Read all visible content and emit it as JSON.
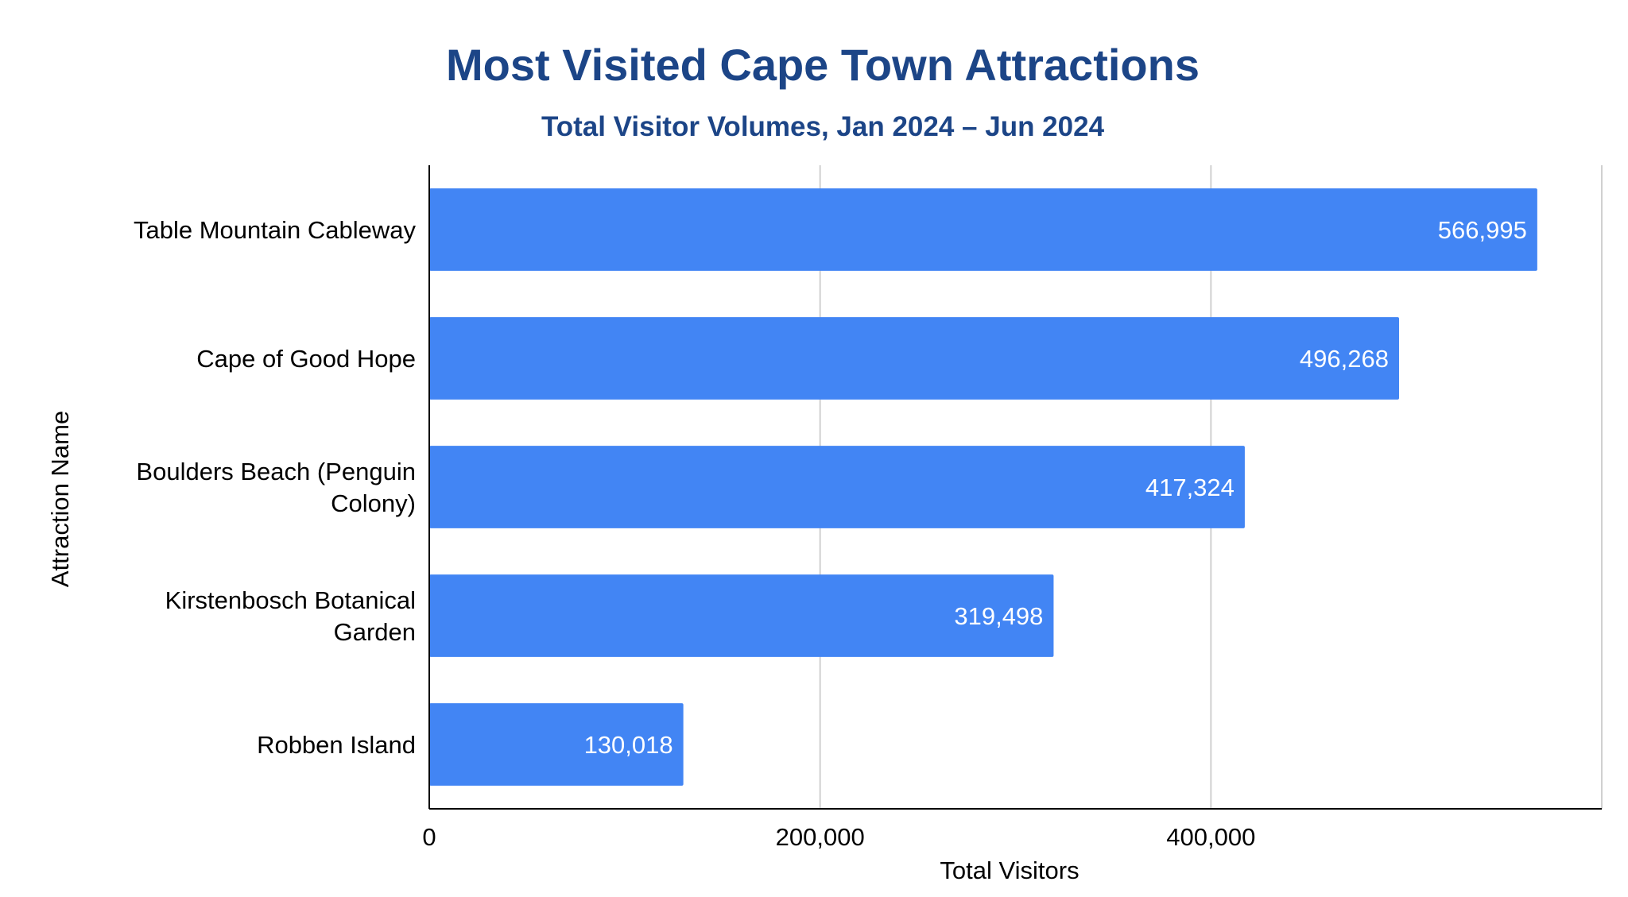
{
  "chart_data": {
    "type": "bar",
    "orientation": "horizontal",
    "title": "Most Visited Cape Town Attractions",
    "subtitle": "Total Visitor Volumes, Jan 2024 – Jun 2024",
    "xlabel": "Total Visitors",
    "ylabel": "Attraction Name",
    "categories": [
      [
        "Table Mountain Cableway"
      ],
      [
        "Cape of Good Hope"
      ],
      [
        "Boulders Beach (Penguin",
        "Colony)"
      ],
      [
        "Kirstenbosch Botanical",
        "Garden"
      ],
      [
        "Robben Island"
      ]
    ],
    "values": [
      566995,
      496268,
      417324,
      319498,
      130018
    ],
    "value_labels": [
      "566,995",
      "496,268",
      "417,324",
      "319,498",
      "130,018"
    ],
    "xlim": [
      0,
      600000
    ],
    "xticks": [
      0,
      200000,
      400000
    ],
    "xtick_labels": [
      "0",
      "200,000",
      "400,000"
    ],
    "grid": true,
    "legend": "none",
    "colors": {
      "bar": "#4285f4",
      "title": "#1c4587",
      "grid": "#d0d0d0",
      "axis": "#000000",
      "value_label": "#ffffff"
    }
  }
}
